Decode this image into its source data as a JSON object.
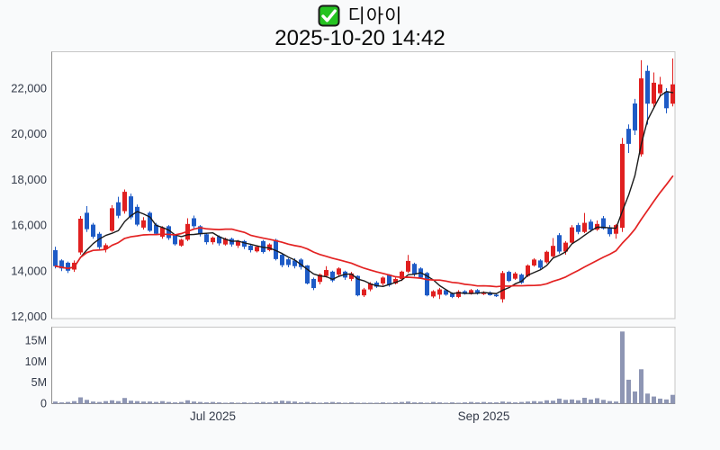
{
  "header": {
    "title": "디아이",
    "timestamp": "2025-10-20 14:42",
    "checkbox_color": "#25c321"
  },
  "chart_data": {
    "type": "candlestick+volume",
    "title": "디아이",
    "subtitle": "2025-10-20 14:42",
    "grid": "off",
    "price_axis": {
      "side": "left",
      "ticks": [
        "22,000",
        "20,000",
        "18,000",
        "16,000",
        "14,000",
        "12,000"
      ],
      "tick_values": [
        22000,
        20000,
        18000,
        16000,
        14000,
        12000
      ],
      "range": [
        11900,
        23650
      ]
    },
    "volume_axis": {
      "side": "left",
      "ticks": [
        "15M",
        "10M",
        "5M",
        "0"
      ],
      "tick_values": [
        15,
        10,
        5,
        0
      ],
      "unit": "millions",
      "range": [
        0,
        18.5
      ]
    },
    "x_axis": {
      "ticks": [
        {
          "label": "Jul 2025",
          "index": 25
        },
        {
          "label": "Sep 2025",
          "index": 68
        }
      ]
    },
    "colors": {
      "up": "#e02020",
      "down": "#1e5bc6",
      "volume": "#8e96b4",
      "ma_short": "#1a1a1a",
      "ma_long": "#e32222",
      "axis_text": "#333a49",
      "panel_border": "#c6c6c6",
      "axis_line": "#8f8f8f"
    },
    "overlays": [
      {
        "name": "ma-short",
        "window": 5,
        "color": "#1a1a1a",
        "width": 1.4
      },
      {
        "name": "ma-long",
        "window": 20,
        "color": "#e32222",
        "width": 1.7
      }
    ],
    "series": {
      "ohlc_order": [
        "open",
        "high",
        "low",
        "close"
      ],
      "ohlc": [
        [
          14900,
          15050,
          14100,
          14200
        ],
        [
          14450,
          14500,
          13980,
          14100
        ],
        [
          14350,
          14400,
          13900,
          14000
        ],
        [
          14050,
          14450,
          13950,
          14350
        ],
        [
          14800,
          16400,
          14700,
          16280
        ],
        [
          16540,
          16830,
          15700,
          15820
        ],
        [
          16020,
          16100,
          15400,
          15490
        ],
        [
          15620,
          15700,
          14950,
          15030
        ],
        [
          14940,
          15200,
          14800,
          15120
        ],
        [
          15750,
          16870,
          15700,
          16740
        ],
        [
          17000,
          17240,
          16300,
          16410
        ],
        [
          16610,
          17560,
          16500,
          17460
        ],
        [
          17260,
          17380,
          16250,
          16340
        ],
        [
          16800,
          16900,
          15950,
          16020
        ],
        [
          15890,
          16350,
          15800,
          16210
        ],
        [
          16540,
          16600,
          15700,
          15750
        ],
        [
          16020,
          16100,
          15550,
          15620
        ],
        [
          15490,
          15950,
          15400,
          15890
        ],
        [
          15950,
          16000,
          15350,
          15430
        ],
        [
          15560,
          15600,
          15100,
          15160
        ],
        [
          15100,
          15400,
          15050,
          15360
        ],
        [
          15360,
          16300,
          15300,
          16050
        ],
        [
          16300,
          16420,
          15850,
          15950
        ],
        [
          15950,
          16000,
          15500,
          15600
        ],
        [
          15600,
          15650,
          15150,
          15250
        ],
        [
          15250,
          15500,
          15150,
          15450
        ],
        [
          15500,
          15550,
          15100,
          15200
        ],
        [
          15150,
          15450,
          15100,
          15400
        ],
        [
          15400,
          15450,
          15050,
          15150
        ],
        [
          15100,
          15350,
          15000,
          15300
        ],
        [
          15300,
          15350,
          14950,
          15050
        ],
        [
          15100,
          15150,
          14800,
          14900
        ],
        [
          14850,
          15100,
          14800,
          15050
        ],
        [
          15300,
          15350,
          14750,
          14820
        ],
        [
          14900,
          15200,
          14850,
          15150
        ],
        [
          15350,
          15400,
          14450,
          14510
        ],
        [
          14700,
          14750,
          14150,
          14240
        ],
        [
          14500,
          14550,
          14150,
          14250
        ],
        [
          14450,
          14550,
          14100,
          14200
        ],
        [
          14490,
          14550,
          14050,
          14160
        ],
        [
          14230,
          14250,
          13400,
          13440
        ],
        [
          13640,
          13700,
          13150,
          13240
        ],
        [
          13510,
          13880,
          13400,
          13830
        ],
        [
          13770,
          14200,
          13700,
          14030
        ],
        [
          13960,
          14000,
          13500,
          13570
        ],
        [
          13830,
          14150,
          13750,
          14100
        ],
        [
          13960,
          14000,
          13600,
          13700
        ],
        [
          13640,
          13950,
          13550,
          13880
        ],
        [
          13770,
          13800,
          12880,
          12920
        ],
        [
          12920,
          13250,
          12850,
          13180
        ],
        [
          13180,
          13500,
          13100,
          13440
        ],
        [
          13480,
          13550,
          13250,
          13300
        ],
        [
          13440,
          13750,
          13350,
          13700
        ],
        [
          13830,
          13850,
          13300,
          13370
        ],
        [
          13440,
          13700,
          13400,
          13640
        ],
        [
          13640,
          14000,
          13550,
          13960
        ],
        [
          13960,
          14690,
          13900,
          14430
        ],
        [
          14300,
          14350,
          13750,
          13830
        ],
        [
          14100,
          14150,
          13650,
          13700
        ],
        [
          13900,
          13950,
          12880,
          12920
        ],
        [
          12870,
          13150,
          12800,
          13100
        ],
        [
          12950,
          13250,
          12760,
          13180
        ],
        [
          13150,
          13200,
          12900,
          12950
        ],
        [
          13000,
          13050,
          12800,
          12850
        ],
        [
          12850,
          13150,
          12800,
          13080
        ],
        [
          13100,
          13150,
          12950,
          12980
        ],
        [
          12980,
          13200,
          12950,
          13150
        ],
        [
          13150,
          13200,
          12950,
          13000
        ],
        [
          12980,
          13100,
          12930,
          13020
        ],
        [
          13050,
          13100,
          12900,
          12930
        ],
        [
          12950,
          13000,
          12850,
          12880
        ],
        [
          12750,
          13990,
          12600,
          13900
        ],
        [
          13950,
          14000,
          13500,
          13550
        ],
        [
          13650,
          13950,
          13600,
          13880
        ],
        [
          13830,
          13880,
          13420,
          13470
        ],
        [
          13770,
          14280,
          13720,
          14230
        ],
        [
          14230,
          14550,
          14180,
          14490
        ],
        [
          14450,
          14500,
          14050,
          14130
        ],
        [
          14370,
          14880,
          14320,
          14830
        ],
        [
          14630,
          15430,
          14580,
          15090
        ],
        [
          15560,
          15650,
          14750,
          14840
        ],
        [
          14840,
          15300,
          14700,
          15230
        ],
        [
          15230,
          16000,
          15150,
          15900
        ],
        [
          16000,
          16100,
          15600,
          15700
        ],
        [
          15700,
          16530,
          15650,
          16100
        ],
        [
          16150,
          16250,
          15700,
          15800
        ],
        [
          15800,
          16200,
          15750,
          16050
        ],
        [
          16300,
          16400,
          15800,
          15850
        ],
        [
          15900,
          16000,
          15500,
          15600
        ],
        [
          15620,
          16050,
          15400,
          16000
        ],
        [
          15880,
          19820,
          15700,
          19560
        ],
        [
          20220,
          20410,
          19160,
          19560
        ],
        [
          21330,
          21530,
          19950,
          20150
        ],
        [
          19100,
          23230,
          19000,
          22430
        ],
        [
          22760,
          23000,
          20400,
          21320
        ],
        [
          21320,
          22690,
          21100,
          22240
        ],
        [
          21780,
          22500,
          21600,
          22170
        ],
        [
          21840,
          22000,
          20900,
          21120
        ],
        [
          21320,
          23300,
          21200,
          22170
        ]
      ],
      "volume_millions": [
        0.5,
        0.3,
        0.4,
        0.6,
        1.5,
        0.9,
        0.5,
        0.4,
        0.6,
        0.8,
        0.6,
        1.35,
        0.7,
        0.6,
        0.5,
        0.5,
        0.4,
        0.6,
        0.4,
        0.3,
        0.4,
        0.8,
        0.5,
        0.4,
        0.3,
        0.4,
        0.3,
        0.2,
        0.3,
        0.2,
        0.3,
        0.2,
        0.3,
        0.4,
        0.3,
        0.5,
        0.7,
        0.6,
        0.5,
        0.3,
        0.4,
        0.3,
        0.2,
        0.3,
        0.4,
        0.3,
        0.2,
        0.3,
        0.2,
        0.2,
        0.2,
        0.2,
        0.3,
        0.2,
        0.3,
        0.4,
        0.5,
        0.3,
        0.3,
        0.2,
        0.4,
        0.3,
        0.2,
        0.3,
        0.2,
        0.3,
        0.4,
        0.3,
        0.4,
        0.3,
        0.3,
        0.5,
        0.4,
        0.3,
        0.4,
        0.5,
        0.6,
        0.5,
        0.8,
        0.7,
        1.2,
        0.9,
        1.0,
        0.8,
        1.4,
        1.0,
        1.3,
        0.9,
        0.6,
        0.5,
        17.2,
        5.7,
        2.9,
        8.2,
        2.4,
        1.7,
        1.2,
        1.0,
        2.1
      ]
    }
  }
}
